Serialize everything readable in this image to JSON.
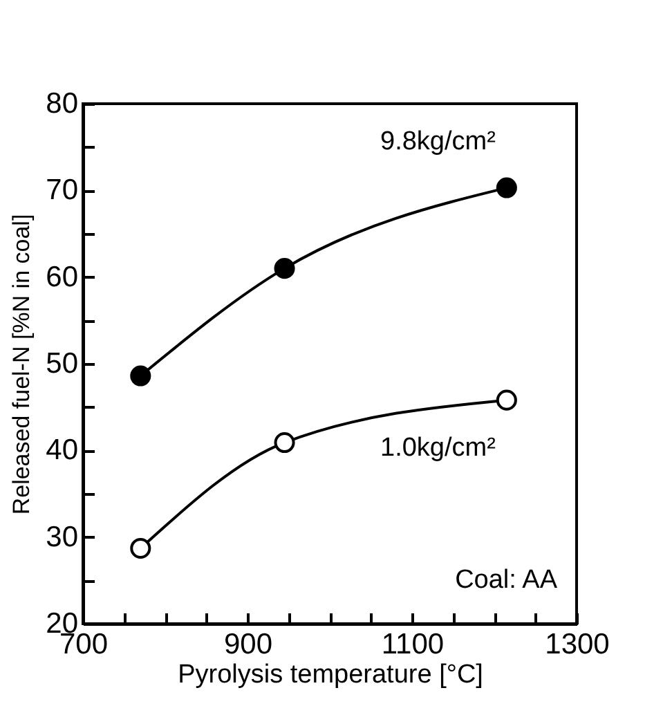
{
  "chart_data": {
    "type": "line",
    "xlabel": "Pyrolysis temperature  [°C]",
    "ylabel": "Released fuel-N  [%N in coal]",
    "x": [
      770,
      945,
      1215
    ],
    "series": [
      {
        "name": "9.8kg/cm²",
        "color": "#000000",
        "values": [
          48.6,
          61.0,
          70.3
        ]
      },
      {
        "name": "1.0kg/cm²",
        "color": "#000000",
        "values": [
          28.7,
          40.9,
          45.8
        ]
      }
    ],
    "xlim": [
      700,
      1300
    ],
    "xticks": [
      700,
      {
        "value": 750,
        "label": null
      },
      {
        "value": 800,
        "label": null
      },
      {
        "value": 850,
        "label": null
      },
      900,
      {
        "value": 950,
        "label": null
      },
      {
        "value": 1000,
        "label": null
      },
      {
        "value": 1050,
        "label": null
      },
      1100,
      {
        "value": 1150,
        "label": null
      },
      {
        "value": 1200,
        "label": null
      },
      {
        "value": 1250,
        "label": null
      },
      1300
    ],
    "ylim": [
      20,
      80
    ],
    "yticks": [
      20,
      {
        "value": 25,
        "label": null
      },
      30,
      {
        "value": 35,
        "label": null
      },
      40,
      {
        "value": 45,
        "label": null
      },
      50,
      {
        "value": 55,
        "label": null
      },
      60,
      {
        "value": 65,
        "label": null
      },
      70,
      {
        "value": 75,
        "label": null
      },
      80
    ],
    "annotations": [
      "Coal: AA"
    ],
    "marker": "circle",
    "line_style": "solid",
    "grid": false,
    "legend": false
  }
}
